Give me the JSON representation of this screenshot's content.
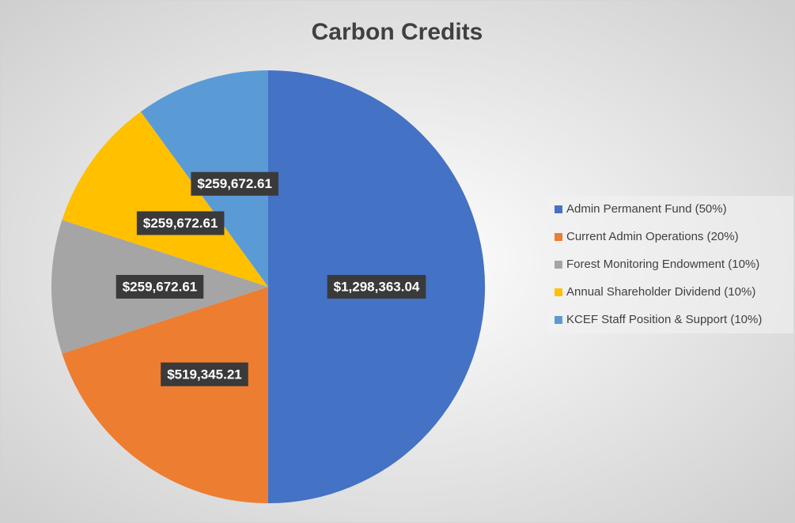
{
  "chart_data": {
    "type": "pie",
    "title": "Carbon Credits",
    "categories": [
      "Admin Permanent Fund (50%)",
      "Current Admin Operations (20%)",
      "Forest Monitoring Endowment (10%)",
      "Annual Shareholder Dividend (10%)",
      "KCEF Staff Position & Support (10%)"
    ],
    "values": [
      1298363.04,
      519345.21,
      259672.61,
      259672.61,
      259672.61
    ],
    "value_labels": [
      "$1,298,363.04",
      "$519,345.21",
      "$259,672.61",
      "$259,672.61",
      "$259,672.61"
    ],
    "colors": [
      "#4472c4",
      "#ed7d31",
      "#a5a5a5",
      "#ffc000",
      "#5b9bd5"
    ],
    "legend": "right"
  }
}
